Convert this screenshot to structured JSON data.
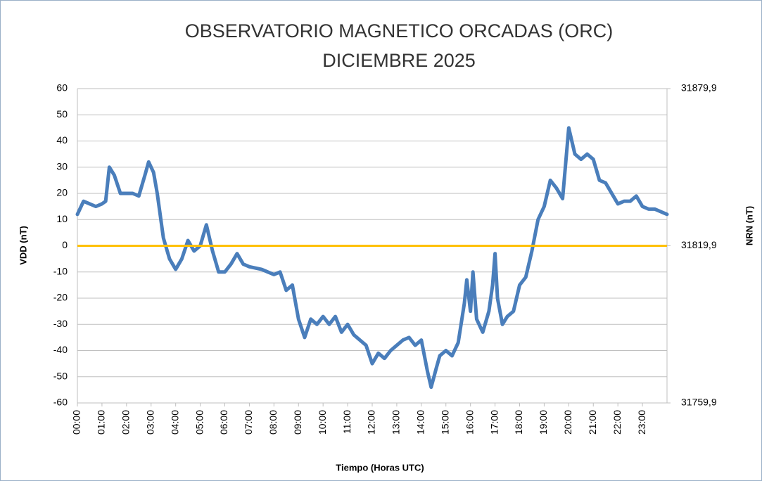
{
  "chart_data": {
    "type": "line",
    "title": [
      "OBSERVATORIO MAGNETICO ORCADAS (ORC)",
      "DICIEMBRE 2025"
    ],
    "x_label": "Tiempo (Horas UTC)",
    "y_label": "VDD (nT)",
    "y2_label": "NRN (nT)",
    "x": [
      0,
      0.25,
      0.5,
      0.75,
      1,
      1.15,
      1.3,
      1.5,
      1.75,
      2,
      2.25,
      2.5,
      2.75,
      2.9,
      3.1,
      3.25,
      3.5,
      3.75,
      4,
      4.25,
      4.5,
      4.75,
      5,
      5.25,
      5.5,
      5.75,
      6,
      6.25,
      6.5,
      6.75,
      7,
      7.5,
      8,
      8.25,
      8.5,
      8.75,
      9,
      9.25,
      9.5,
      9.75,
      10,
      10.25,
      10.5,
      10.75,
      11,
      11.25,
      11.5,
      11.75,
      12,
      12.25,
      12.5,
      12.75,
      13,
      13.25,
      13.5,
      13.75,
      14,
      14.25,
      14.4,
      14.6,
      14.75,
      15,
      15.25,
      15.5,
      15.75,
      15.85,
      16,
      16.1,
      16.25,
      16.5,
      16.75,
      16.9,
      17,
      17.1,
      17.3,
      17.5,
      17.75,
      18,
      18.25,
      18.5,
      18.75,
      19,
      19.25,
      19.5,
      19.75,
      20,
      20.25,
      20.5,
      20.75,
      21,
      21.25,
      21.5,
      21.75,
      22,
      22.25,
      22.5,
      22.75,
      23,
      23.25,
      23.5,
      23.75,
      24
    ],
    "series": [
      {
        "name": "VDD",
        "color": "#4a7ebb",
        "values": [
          12,
          17,
          16,
          15,
          16,
          17,
          30,
          27,
          20,
          20,
          20,
          19,
          27,
          32,
          28,
          20,
          3,
          -5,
          -9,
          -5,
          2,
          -2,
          0,
          8,
          -2,
          -10,
          -10,
          -7,
          -3,
          -7,
          -8,
          -9,
          -11,
          -10,
          -17,
          -15,
          -28,
          -35,
          -28,
          -30,
          -27,
          -30,
          -27,
          -33,
          -30,
          -34,
          -36,
          -38,
          -45,
          -41,
          -43,
          -40,
          -38,
          -36,
          -35,
          -38,
          -36,
          -48,
          -54,
          -47,
          -42,
          -40,
          -42,
          -37,
          -22,
          -13,
          -25,
          -10,
          -28,
          -33,
          -25,
          -15,
          -3,
          -20,
          -30,
          -27,
          -25,
          -15,
          -12,
          -2,
          10,
          15,
          25,
          22,
          18,
          45,
          35,
          33,
          35,
          33,
          25,
          24,
          20,
          16,
          17,
          17,
          19,
          15,
          14,
          14,
          13,
          12
        ]
      }
    ],
    "reference_line": {
      "value": 0,
      "color": "#ffc000"
    },
    "xlim": [
      0,
      24
    ],
    "xticks": [
      {
        "value": 0,
        "label": "00:00"
      },
      {
        "value": 1,
        "label": "01:00"
      },
      {
        "value": 2,
        "label": "02:00"
      },
      {
        "value": 3,
        "label": "03:00"
      },
      {
        "value": 4,
        "label": "04:00"
      },
      {
        "value": 5,
        "label": "05:00"
      },
      {
        "value": 6,
        "label": "06:00"
      },
      {
        "value": 7,
        "label": "07:00"
      },
      {
        "value": 8,
        "label": "08:00"
      },
      {
        "value": 9,
        "label": "09:00"
      },
      {
        "value": 10,
        "label": "10:00"
      },
      {
        "value": 11,
        "label": "11:00"
      },
      {
        "value": 12,
        "label": "12:00"
      },
      {
        "value": 13,
        "label": "13:00"
      },
      {
        "value": 14,
        "label": "14:00"
      },
      {
        "value": 15,
        "label": "15:00"
      },
      {
        "value": 16,
        "label": "16:00"
      },
      {
        "value": 17,
        "label": "17:00"
      },
      {
        "value": 18,
        "label": "18:00"
      },
      {
        "value": 19,
        "label": "19:00"
      },
      {
        "value": 20,
        "label": "20:00"
      },
      {
        "value": 21,
        "label": "21:00"
      },
      {
        "value": 22,
        "label": "22:00"
      },
      {
        "value": 23,
        "label": "23:00"
      }
    ],
    "ylim": [
      -60,
      60
    ],
    "yticks": [
      -60,
      -50,
      -40,
      -30,
      -20,
      -10,
      0,
      10,
      20,
      30,
      40,
      50,
      60
    ],
    "y2lim": [
      31759.9,
      31879.9
    ],
    "y2ticks": [
      {
        "value": 31759.9,
        "label": "31759,9"
      },
      {
        "value": 31819.9,
        "label": "31819,9"
      },
      {
        "value": 31879.9,
        "label": "31879,9"
      }
    ],
    "grid": true
  }
}
